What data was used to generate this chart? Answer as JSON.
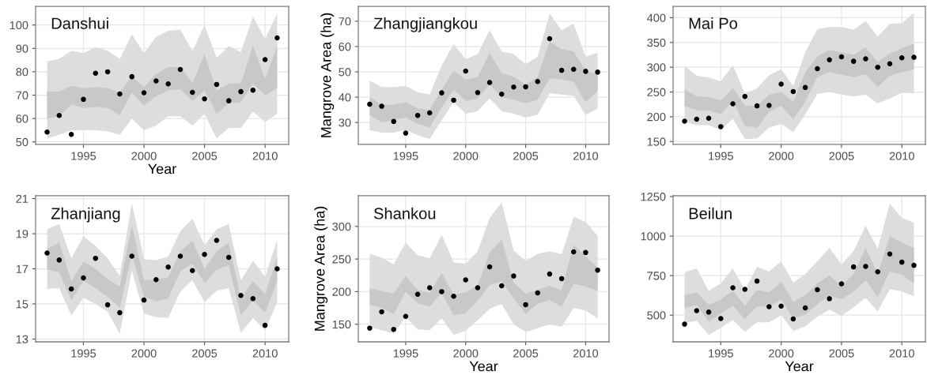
{
  "chart_data": [
    {
      "type": "scatter",
      "title": "Danshui",
      "xlabel": "Year",
      "x": [
        1992,
        1993,
        1994,
        1995,
        1996,
        1997,
        1998,
        1999,
        2000,
        2001,
        2002,
        2003,
        2004,
        2005,
        2006,
        2007,
        2008,
        2009,
        2010,
        2011
      ],
      "xlim": [
        1991.05,
        2011.95
      ],
      "xticks": [
        1995,
        2000,
        2005,
        2010
      ],
      "ylim": [
        48.9,
        108
      ],
      "yticks": [
        50,
        60,
        70,
        80,
        90,
        100
      ],
      "grid": true,
      "marker": "circle",
      "series": [
        {
          "type": "area",
          "color": "#dddddd",
          "values": [
            null,
            null,
            null,
            null,
            null,
            null,
            null,
            null,
            null,
            null,
            null,
            null,
            null,
            null,
            null,
            null,
            null,
            null,
            null,
            null
          ],
          "lower": [
            51.5,
            53,
            55,
            55,
            55,
            54.5,
            53,
            60,
            55,
            57,
            61,
            61,
            57,
            62,
            51.5,
            56,
            56,
            63,
            58.5,
            62
          ],
          "upper": [
            84.5,
            85.5,
            89,
            88,
            90.5,
            89,
            85.5,
            96,
            88,
            95,
            97.5,
            98,
            89,
            100,
            86,
            91,
            88.5,
            103.5,
            94,
            105
          ]
        },
        {
          "type": "area",
          "color": "#c8c8c8",
          "values": [
            null,
            null,
            null,
            null,
            null,
            null,
            null,
            null,
            null,
            null,
            null,
            null,
            null,
            null,
            null,
            null,
            null,
            null,
            null,
            null
          ],
          "lower": [
            60,
            61,
            66,
            64.5,
            65,
            64.5,
            61.5,
            71,
            65.5,
            69.5,
            72,
            72.5,
            67.5,
            72,
            62,
            66.5,
            67,
            75,
            70,
            73
          ],
          "upper": [
            71.5,
            71.5,
            74,
            73,
            73.5,
            73,
            71,
            78,
            73.5,
            79,
            82,
            82,
            75,
            87.5,
            72,
            75,
            75,
            91,
            77,
            91
          ]
        },
        {
          "color": "#000000",
          "values": [
            54.2,
            61.3,
            53.2,
            68.2,
            79.4,
            80.0,
            70.5,
            77.9,
            71.0,
            76.1,
            74.8,
            81.0,
            71.2,
            68.4,
            74.6,
            67.6,
            71.5,
            72.1,
            85.2,
            94.5
          ]
        }
      ]
    },
    {
      "type": "scatter",
      "title": "Zhangjiangkou",
      "ylabel": "Mangrove Area (ha)",
      "x": [
        1992,
        1993,
        1994,
        1995,
        1996,
        1997,
        1998,
        1999,
        2000,
        2001,
        2002,
        2003,
        2004,
        2005,
        2006,
        2007,
        2008,
        2009,
        2010,
        2011
      ],
      "xlim": [
        1991.05,
        2011.95
      ],
      "xticks": [
        1995,
        2000,
        2005,
        2010
      ],
      "ylim": [
        21.3,
        75.9
      ],
      "yticks": [
        30,
        40,
        50,
        60,
        70
      ],
      "grid": true,
      "marker": "circle",
      "series": [
        {
          "type": "area",
          "color": "#dddddd",
          "values": [
            null,
            null,
            null,
            null,
            null,
            null,
            null,
            null,
            null,
            null,
            null,
            null,
            null,
            null,
            null,
            null,
            null,
            null,
            null,
            null
          ],
          "lower": [
            27,
            26,
            26,
            27,
            25,
            23.5,
            31,
            38,
            33.5,
            34.5,
            39.5,
            34.5,
            33.5,
            32,
            33,
            41.5,
            41,
            40.5,
            33,
            35.5
          ],
          "upper": [
            46.5,
            44,
            44,
            44.5,
            42,
            41,
            52.5,
            61,
            55,
            57,
            66.5,
            58,
            57,
            53,
            56,
            73,
            66.5,
            69,
            56,
            57.5
          ]
        },
        {
          "type": "area",
          "color": "#c8c8c8",
          "values": [
            null,
            null,
            null,
            null,
            null,
            null,
            null,
            null,
            null,
            null,
            null,
            null,
            null,
            null,
            null,
            null,
            null,
            null,
            null,
            null
          ],
          "lower": [
            33,
            30,
            31,
            32,
            29.5,
            28,
            36,
            43,
            38.5,
            39.5,
            45,
            40,
            39,
            37.5,
            39,
            47.5,
            47,
            46,
            38,
            42.5
          ],
          "upper": [
            40,
            37,
            37,
            38,
            35.5,
            35,
            43,
            50.5,
            47,
            48,
            57.5,
            49.5,
            48,
            45,
            48,
            62,
            59,
            58,
            50.5,
            49
          ]
        },
        {
          "color": "#000000",
          "values": [
            37.2,
            36.4,
            30.4,
            25.8,
            32.8,
            33.8,
            41.7,
            38.8,
            50.3,
            41.8,
            45.8,
            41.2,
            44.0,
            44.1,
            46.2,
            63.1,
            50.6,
            51.0,
            50.2,
            49.9
          ]
        }
      ]
    },
    {
      "type": "scatter",
      "title": "Mai Po",
      "x": [
        1992,
        1993,
        1994,
        1995,
        1996,
        1997,
        1998,
        1999,
        2000,
        2001,
        2002,
        2003,
        2004,
        2005,
        2006,
        2007,
        2008,
        2009,
        2010,
        2011
      ],
      "xlim": [
        1991.05,
        2011.95
      ],
      "xticks": [
        1995,
        2000,
        2005,
        2010
      ],
      "ylim": [
        144,
        423
      ],
      "yticks": [
        150,
        200,
        250,
        300,
        350,
        400
      ],
      "grid": true,
      "marker": "circle",
      "series": [
        {
          "type": "area",
          "color": "#dddddd",
          "values": [
            null,
            null,
            null,
            null,
            null,
            null,
            null,
            null,
            null,
            null,
            null,
            null,
            null,
            null,
            null,
            null,
            null,
            null,
            null,
            null
          ],
          "lower": [
            190,
            183,
            183,
            173,
            196,
            155,
            156,
            178,
            186,
            169,
            205,
            246,
            250,
            245,
            241,
            245,
            227,
            237,
            249,
            247
          ],
          "upper": [
            303,
            283,
            279,
            272,
            304,
            247,
            257,
            284,
            296,
            262,
            330,
            377,
            381,
            381,
            376,
            393,
            362,
            388,
            389,
            410
          ]
        },
        {
          "type": "area",
          "color": "#c8c8c8",
          "values": [
            null,
            null,
            null,
            null,
            null,
            null,
            null,
            null,
            null,
            null,
            null,
            null,
            null,
            null,
            null,
            null,
            null,
            null,
            null,
            null
          ],
          "lower": [
            222,
            213,
            213,
            205,
            232,
            182,
            178,
            210,
            222,
            195,
            230,
            280,
            290,
            285,
            280,
            286,
            260,
            283,
            290,
            296
          ],
          "upper": [
            256,
            241,
            240,
            233,
            258,
            222,
            222,
            245,
            250,
            230,
            290,
            322,
            335,
            330,
            325,
            340,
            310,
            328,
            338,
            348
          ]
        },
        {
          "color": "#000000",
          "values": [
            191,
            195,
            197,
            180,
            226,
            241,
            222,
            223,
            266,
            251,
            259,
            297,
            315,
            321,
            312,
            317,
            300,
            307,
            319,
            320
          ]
        }
      ]
    },
    {
      "type": "scatter",
      "title": "Zhanjiang",
      "x": [
        1992,
        1993,
        1994,
        1995,
        1996,
        1997,
        1998,
        1999,
        2000,
        2001,
        2002,
        2003,
        2004,
        2005,
        2006,
        2007,
        2008,
        2009,
        2010,
        2011
      ],
      "xlim": [
        1991.05,
        2011.95
      ],
      "xticks": [
        1995,
        2000,
        2005,
        2010
      ],
      "ylim": [
        12.84,
        21.16
      ],
      "yticks": [
        13,
        15,
        17,
        19,
        21
      ],
      "grid": true,
      "marker": "circle",
      "series": [
        {
          "type": "area",
          "color": "#dddddd",
          "values": [
            null,
            null,
            null,
            null,
            null,
            null,
            null,
            null,
            null,
            null,
            null,
            null,
            null,
            null,
            null,
            null,
            null,
            null,
            null,
            null
          ],
          "lower": [
            15.85,
            15.9,
            14.35,
            15.35,
            15.0,
            14.55,
            13.3,
            16.9,
            14.45,
            14.25,
            14.2,
            15.7,
            16.35,
            15.1,
            15.75,
            15.9,
            13.35,
            14.2,
            13.5,
            15.1
          ],
          "upper": [
            19.25,
            19.55,
            17.6,
            18.85,
            18.3,
            17.6,
            16.6,
            20.75,
            17.55,
            17.5,
            17.7,
            19.15,
            19.85,
            18.35,
            19.25,
            19.55,
            16.35,
            17.45,
            16.55,
            18.65
          ]
        },
        {
          "type": "area",
          "color": "#c8c8c8",
          "values": [
            null,
            null,
            null,
            null,
            null,
            null,
            null,
            null,
            null,
            null,
            null,
            null,
            null,
            null,
            null,
            null,
            null,
            null,
            null,
            null
          ],
          "lower": [
            16.95,
            16.8,
            15.2,
            16.3,
            15.9,
            15.4,
            14.8,
            17.8,
            15.4,
            15.15,
            15.3,
            16.85,
            17.3,
            16.2,
            16.95,
            17.2,
            14.35,
            15.2,
            14.5,
            16.3
          ],
          "upper": [
            18.15,
            18.5,
            16.3,
            17.4,
            17.0,
            16.4,
            16.0,
            19.5,
            16.35,
            16.4,
            16.5,
            18.0,
            18.6,
            17.0,
            18.0,
            18.5,
            15.3,
            16.3,
            15.55,
            17.65
          ]
        },
        {
          "color": "#000000",
          "values": [
            17.9,
            17.5,
            15.85,
            16.48,
            17.6,
            14.95,
            14.5,
            17.72,
            15.22,
            16.38,
            17.1,
            17.72,
            16.9,
            17.82,
            18.62,
            17.65,
            15.48,
            15.3,
            13.78,
            17.0
          ]
        }
      ]
    },
    {
      "type": "scatter",
      "title": "Shankou",
      "xlabel": "Year",
      "ylabel": "Mangrove Area (ha)",
      "x": [
        1992,
        1993,
        1994,
        1995,
        1996,
        1997,
        1998,
        1999,
        2000,
        2001,
        2002,
        2003,
        2004,
        2005,
        2006,
        2007,
        2008,
        2009,
        2010,
        2011
      ],
      "xlim": [
        1991.05,
        2011.95
      ],
      "xticks": [
        1995,
        2000,
        2005,
        2010
      ],
      "ylim": [
        123,
        347
      ],
      "yticks": [
        150,
        200,
        250,
        300
      ],
      "grid": true,
      "marker": "circle",
      "series": [
        {
          "type": "area",
          "color": "#dddddd",
          "values": [
            null,
            null,
            null,
            null,
            null,
            null,
            null,
            null,
            null,
            null,
            null,
            null,
            null,
            null,
            null,
            null,
            null,
            null,
            null,
            null
          ],
          "lower": [
            146,
            141,
            136,
            161,
            142,
            141,
            159,
            134,
            140,
            156,
            174,
            181,
            150,
            138,
            144,
            150,
            146,
            175,
            171,
            159
          ],
          "upper": [
            258,
            252,
            242,
            275,
            256,
            251,
            287,
            245,
            243,
            262,
            313,
            337,
            263,
            247,
            258,
            262,
            257,
            315,
            307,
            286
          ]
        },
        {
          "type": "area",
          "color": "#c8c8c8",
          "values": [
            null,
            null,
            null,
            null,
            null,
            null,
            null,
            null,
            null,
            null,
            null,
            null,
            null,
            null,
            null,
            null,
            null,
            null,
            null,
            null
          ],
          "lower": [
            180,
            175,
            165,
            200,
            182,
            177,
            198,
            164,
            167,
            186,
            210,
            216,
            190,
            166,
            181,
            187,
            177,
            212,
            208,
            201
          ],
          "upper": [
            205,
            201,
            197,
            224,
            203,
            198,
            229,
            195,
            199,
            210,
            260,
            280,
            214,
            197,
            203,
            209,
            202,
            272,
            254,
            237
          ]
        },
        {
          "color": "#000000",
          "values": [
            144,
            169,
            142,
            162,
            196,
            206,
            200,
            193,
            218,
            206,
            238,
            209,
            224,
            180,
            198,
            227,
            220,
            261,
            260,
            233
          ]
        }
      ]
    },
    {
      "type": "scatter",
      "title": "Beilun",
      "xlabel": "Year",
      "x": [
        1992,
        1993,
        1994,
        1995,
        1996,
        1997,
        1998,
        1999,
        2000,
        2001,
        2002,
        2003,
        2004,
        2005,
        2006,
        2007,
        2008,
        2009,
        2010,
        2011
      ],
      "xlim": [
        1991.05,
        2011.95
      ],
      "xticks": [
        1995,
        2000,
        2005,
        2010
      ],
      "ylim": [
        331,
        1255
      ],
      "yticks": [
        500,
        750,
        1000,
        1250
      ],
      "grid": true,
      "marker": "circle",
      "series": [
        {
          "type": "area",
          "color": "#dddddd",
          "values": [
            null,
            null,
            null,
            null,
            null,
            null,
            null,
            null,
            null,
            null,
            null,
            null,
            null,
            null,
            null,
            null,
            null,
            null,
            null,
            null
          ],
          "lower": [
            450,
            465,
            375,
            420,
            470,
            395,
            455,
            455,
            500,
            400,
            430,
            490,
            535,
            495,
            550,
            610,
            525,
            665,
            650,
            620
          ],
          "upper": [
            770,
            795,
            655,
            700,
            795,
            660,
            805,
            775,
            840,
            705,
            760,
            840,
            925,
            820,
            905,
            1065,
            920,
            1205,
            1115,
            1085
          ]
        },
        {
          "type": "area",
          "color": "#c8c8c8",
          "values": [
            null,
            null,
            null,
            null,
            null,
            null,
            null,
            null,
            null,
            null,
            null,
            null,
            null,
            null,
            null,
            null,
            null,
            null,
            null,
            null
          ],
          "lower": [
            545,
            565,
            460,
            510,
            560,
            475,
            555,
            555,
            600,
            480,
            505,
            570,
            625,
            600,
            650,
            720,
            615,
            775,
            755,
            700
          ],
          "upper": [
            625,
            645,
            565,
            600,
            655,
            560,
            660,
            645,
            710,
            585,
            625,
            700,
            750,
            685,
            760,
            925,
            760,
            1000,
            960,
            925
          ]
        },
        {
          "color": "#000000",
          "values": [
            443,
            528,
            519,
            478,
            673,
            663,
            715,
            553,
            557,
            476,
            546,
            661,
            604,
            698,
            805,
            808,
            774,
            887,
            835,
            815
          ]
        }
      ]
    }
  ]
}
